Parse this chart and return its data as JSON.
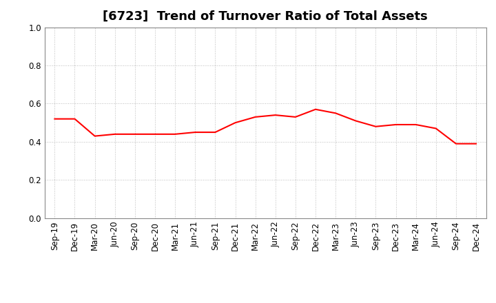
{
  "title": "[6723]  Trend of Turnover Ratio of Total Assets",
  "x_labels": [
    "Sep-19",
    "Dec-19",
    "Mar-20",
    "Jun-20",
    "Sep-20",
    "Dec-20",
    "Mar-21",
    "Jun-21",
    "Sep-21",
    "Dec-21",
    "Mar-22",
    "Jun-22",
    "Sep-22",
    "Dec-22",
    "Mar-23",
    "Jun-23",
    "Sep-23",
    "Dec-23",
    "Mar-24",
    "Jun-24",
    "Sep-24",
    "Dec-24"
  ],
  "y_values": [
    0.52,
    0.52,
    0.43,
    0.44,
    0.44,
    0.44,
    0.44,
    0.45,
    0.45,
    0.5,
    0.53,
    0.54,
    0.53,
    0.57,
    0.55,
    0.51,
    0.48,
    0.49,
    0.49,
    0.47,
    0.39,
    0.39
  ],
  "line_color": "#FF0000",
  "line_width": 1.5,
  "background_color": "#FFFFFF",
  "grid_color": "#AAAAAA",
  "ylim": [
    0.0,
    1.0
  ],
  "yticks": [
    0.0,
    0.2,
    0.4,
    0.6,
    0.8,
    1.0
  ],
  "title_fontsize": 13,
  "tick_fontsize": 8.5
}
